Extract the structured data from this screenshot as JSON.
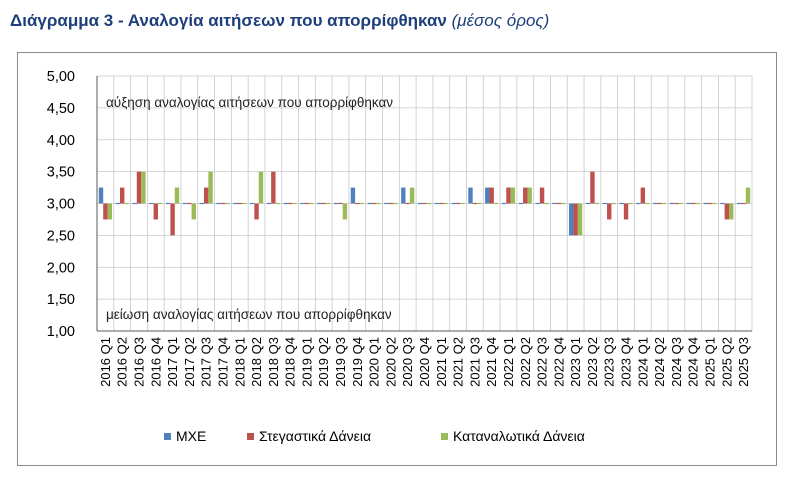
{
  "title": {
    "main": "Διάγραμμα 3 - Αναλογία αιτήσεων που απορρίφθηκαν",
    "sub": "(μέσος όρος)"
  },
  "chart_data": {
    "type": "bar",
    "title": "Διάγραμμα 3 - Αναλογία αιτήσεων που απορρίφθηκαν (μέσος όρος)",
    "xlabel": "",
    "ylabel": "",
    "ylim": [
      1.0,
      5.0
    ],
    "y_ticks": [
      "1,00",
      "1,50",
      "2,00",
      "2,50",
      "3,00",
      "3,50",
      "4,00",
      "4,50",
      "5,00"
    ],
    "baseline": 3.0,
    "annotations": {
      "top": "αύξηση αναλογίας αιτήσεων που απορρίφθηκαν",
      "bottom": "μείωση αναλογίας αιτήσεων που απορρίφθηκαν"
    },
    "legend_position": "bottom",
    "categories": [
      "2016 Q1",
      "2016 Q2",
      "2016 Q3",
      "2016 Q4",
      "2017 Q1",
      "2017 Q2",
      "2017 Q3",
      "2017 Q4",
      "2018 Q1",
      "2018 Q2",
      "2018 Q3",
      "2018 Q4",
      "2019 Q1",
      "2019 Q2",
      "2019 Q3",
      "2019 Q4",
      "2020 Q1",
      "2020 Q2",
      "2020 Q3",
      "2020 Q4",
      "2021 Q1",
      "2021 Q2",
      "2021 Q3",
      "2021 Q4",
      "2022 Q1",
      "2022 Q2",
      "2022 Q3",
      "2022 Q4",
      "2023 Q1",
      "2023 Q2",
      "2023 Q3",
      "2023 Q4",
      "2024 Q1",
      "2024 Q2",
      "2024 Q3",
      "2024 Q4",
      "2025 Q1",
      "2025 Q2",
      "2025 Q3"
    ],
    "series": [
      {
        "name": "ΜΧΕ",
        "color": "#4f81bd",
        "values": [
          3.25,
          3.0,
          3.0,
          3.0,
          3.0,
          3.0,
          3.0,
          3.0,
          3.0,
          3.0,
          3.0,
          3.0,
          3.0,
          3.0,
          3.0,
          3.25,
          3.0,
          3.0,
          3.25,
          3.0,
          3.0,
          3.0,
          3.25,
          3.25,
          3.0,
          3.0,
          3.0,
          3.0,
          2.5,
          3.0,
          3.0,
          3.0,
          3.0,
          3.0,
          3.0,
          3.0,
          3.0,
          3.0,
          3.0
        ]
      },
      {
        "name": "Στεγαστικά Δάνεια",
        "color": "#c0504d",
        "values": [
          2.75,
          3.25,
          3.5,
          2.75,
          2.5,
          3.0,
          3.25,
          3.0,
          3.0,
          2.75,
          3.5,
          3.0,
          3.0,
          3.0,
          3.0,
          3.0,
          3.0,
          3.0,
          3.0,
          3.0,
          3.0,
          3.0,
          3.0,
          3.25,
          3.25,
          3.25,
          3.25,
          3.0,
          2.5,
          3.5,
          2.75,
          2.75,
          3.25,
          3.0,
          3.0,
          3.0,
          3.0,
          2.75,
          3.0
        ]
      },
      {
        "name": "Καταναλωτικά Δάνεια",
        "color": "#9bbb59",
        "values": [
          2.75,
          3.0,
          3.5,
          3.0,
          3.25,
          2.75,
          3.5,
          3.0,
          3.0,
          3.5,
          3.0,
          3.0,
          3.0,
          3.0,
          2.75,
          3.0,
          3.0,
          3.0,
          3.25,
          3.0,
          3.0,
          3.0,
          3.0,
          3.0,
          3.25,
          3.25,
          3.0,
          3.0,
          2.5,
          3.0,
          3.0,
          3.0,
          3.0,
          3.0,
          3.0,
          3.0,
          3.0,
          2.75,
          3.25
        ]
      }
    ]
  }
}
